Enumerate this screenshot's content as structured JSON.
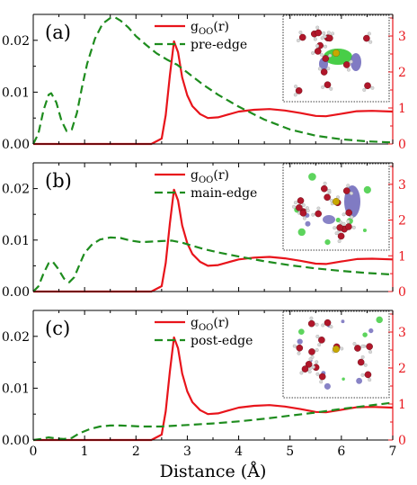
{
  "colors": {
    "g_oo": "#e8141b",
    "edge": "#1e8c1e",
    "frame": "#000000",
    "right_axis": "#e8141b",
    "inset_border": "#000000",
    "oxygen": "#b0162a",
    "hydrogen": "#d8d8d8",
    "density_purple": "#6a64b8",
    "density_green": "#34c934",
    "center": "#c8a800"
  },
  "x_axis": {
    "label": "Distance (Å)",
    "ticks": [
      "0",
      "1",
      "2",
      "3",
      "4",
      "5",
      "6",
      "7"
    ]
  },
  "chart_data": [
    {
      "type": "line",
      "panel_label": "(a)",
      "x_range": [
        0,
        7
      ],
      "y_left_range": [
        0,
        0.025
      ],
      "y_left_ticks": [
        "0.00",
        "0.01",
        "0.02"
      ],
      "y_right_range": [
        0,
        3.6
      ],
      "y_right_ticks": [
        "0",
        "1",
        "2",
        "3"
      ],
      "legend": {
        "position": "top-center",
        "entries": [
          {
            "label_main": "g",
            "label_sub": "OO",
            "label_tail": "(r)"
          },
          {
            "label": "pre-edge"
          }
        ]
      },
      "series": [
        {
          "name": "gOO(r)",
          "axis": "right",
          "style": "solid",
          "x": [
            0,
            2.3,
            2.5,
            2.58,
            2.66,
            2.74,
            2.82,
            2.9,
            3.0,
            3.1,
            3.25,
            3.4,
            3.6,
            3.8,
            4.0,
            4.3,
            4.6,
            4.9,
            5.2,
            5.5,
            5.7,
            6.0,
            6.3,
            6.6,
            7.0
          ],
          "y": [
            0,
            0,
            0.15,
            0.8,
            1.9,
            2.85,
            2.55,
            1.85,
            1.35,
            1.05,
            0.83,
            0.72,
            0.74,
            0.82,
            0.9,
            0.95,
            0.97,
            0.93,
            0.86,
            0.78,
            0.77,
            0.84,
            0.91,
            0.92,
            0.9
          ]
        },
        {
          "name": "pre-edge",
          "axis": "left",
          "style": "dashed",
          "x": [
            0,
            0.1,
            0.2,
            0.3,
            0.35,
            0.45,
            0.55,
            0.65,
            0.75,
            0.85,
            0.95,
            1.05,
            1.2,
            1.35,
            1.5,
            1.6,
            1.7,
            1.85,
            2.0,
            2.2,
            2.4,
            2.6,
            2.8,
            3.0,
            3.3,
            3.6,
            4.0,
            4.5,
            5.0,
            5.5,
            6.0,
            6.5,
            7.0
          ],
          "y": [
            0,
            0.002,
            0.0065,
            0.0095,
            0.0098,
            0.008,
            0.0045,
            0.0025,
            0.0028,
            0.006,
            0.011,
            0.0155,
            0.0203,
            0.0232,
            0.0243,
            0.0244,
            0.0238,
            0.0225,
            0.0208,
            0.0191,
            0.0175,
            0.0163,
            0.0153,
            0.0138,
            0.0115,
            0.0095,
            0.0072,
            0.0047,
            0.0028,
            0.0016,
            0.0009,
            0.0005,
            0.0003
          ]
        }
      ]
    },
    {
      "type": "line",
      "panel_label": "(b)",
      "x_range": [
        0,
        7
      ],
      "y_left_range": [
        0,
        0.025
      ],
      "y_left_ticks": [
        "0.00",
        "0.01",
        "0.02"
      ],
      "y_right_range": [
        0,
        3.6
      ],
      "y_right_ticks": [
        "0",
        "1",
        "2",
        "3"
      ],
      "legend": {
        "position": "top-center",
        "entries": [
          {
            "label_main": "g",
            "label_sub": "OO",
            "label_tail": "(r)"
          },
          {
            "label": "main-edge"
          }
        ]
      },
      "series": [
        {
          "name": "gOO(r)",
          "axis": "right",
          "style": "solid",
          "x": [
            0,
            2.3,
            2.5,
            2.58,
            2.66,
            2.74,
            2.82,
            2.9,
            3.0,
            3.1,
            3.25,
            3.4,
            3.6,
            3.8,
            4.0,
            4.3,
            4.6,
            4.9,
            5.2,
            5.5,
            5.7,
            6.0,
            6.3,
            6.6,
            7.0
          ],
          "y": [
            0,
            0,
            0.15,
            0.8,
            1.9,
            2.85,
            2.55,
            1.85,
            1.35,
            1.05,
            0.83,
            0.72,
            0.74,
            0.82,
            0.9,
            0.95,
            0.97,
            0.93,
            0.86,
            0.78,
            0.77,
            0.84,
            0.91,
            0.92,
            0.9
          ]
        },
        {
          "name": "main-edge",
          "axis": "left",
          "style": "dashed",
          "x": [
            0,
            0.1,
            0.2,
            0.3,
            0.38,
            0.48,
            0.6,
            0.7,
            0.8,
            0.9,
            1.0,
            1.15,
            1.3,
            1.5,
            1.7,
            1.9,
            2.1,
            2.3,
            2.5,
            2.7,
            2.9,
            3.1,
            3.3,
            3.6,
            4.0,
            4.5,
            5.0,
            5.5,
            6.0,
            6.5,
            7.0
          ],
          "y": [
            0,
            0.001,
            0.0035,
            0.0055,
            0.0058,
            0.0045,
            0.0025,
            0.0018,
            0.0028,
            0.0052,
            0.0075,
            0.0092,
            0.0101,
            0.0105,
            0.0104,
            0.0099,
            0.0096,
            0.0097,
            0.0098,
            0.0099,
            0.0095,
            0.0089,
            0.0083,
            0.0076,
            0.0068,
            0.0059,
            0.0051,
            0.0045,
            0.004,
            0.0036,
            0.0033
          ]
        }
      ]
    },
    {
      "type": "line",
      "panel_label": "(c)",
      "x_range": [
        0,
        7
      ],
      "y_left_range": [
        0,
        0.025
      ],
      "y_left_ticks": [
        "0.00",
        "0.01",
        "0.02"
      ],
      "y_right_range": [
        0,
        3.6
      ],
      "y_right_ticks": [
        "0",
        "1",
        "2",
        "3"
      ],
      "legend": {
        "position": "top-center",
        "entries": [
          {
            "label_main": "g",
            "label_sub": "OO",
            "label_tail": "(r)"
          },
          {
            "label": "post-edge"
          }
        ]
      },
      "series": [
        {
          "name": "gOO(r)",
          "axis": "right",
          "style": "solid",
          "x": [
            0,
            2.3,
            2.5,
            2.58,
            2.66,
            2.74,
            2.82,
            2.9,
            3.0,
            3.1,
            3.25,
            3.4,
            3.6,
            3.8,
            4.0,
            4.3,
            4.6,
            4.9,
            5.2,
            5.5,
            5.7,
            6.0,
            6.3,
            6.6,
            7.0
          ],
          "y": [
            0,
            0,
            0.15,
            0.8,
            1.9,
            2.85,
            2.55,
            1.85,
            1.35,
            1.05,
            0.83,
            0.72,
            0.74,
            0.82,
            0.9,
            0.95,
            0.97,
            0.93,
            0.86,
            0.78,
            0.77,
            0.84,
            0.91,
            0.92,
            0.9
          ]
        },
        {
          "name": "post-edge",
          "axis": "left",
          "style": "dashed",
          "x": [
            0,
            0.15,
            0.3,
            0.45,
            0.6,
            0.75,
            0.9,
            1.1,
            1.3,
            1.5,
            1.7,
            1.9,
            2.1,
            2.3,
            2.5,
            3.0,
            3.5,
            4.0,
            4.5,
            5.0,
            5.5,
            6.0,
            6.5,
            7.0
          ],
          "y": [
            0,
            0.0002,
            0.0005,
            0.0003,
            0.0002,
            0.0004,
            0.0013,
            0.0021,
            0.0026,
            0.0028,
            0.0028,
            0.0027,
            0.0026,
            0.0026,
            0.0026,
            0.0029,
            0.0032,
            0.0036,
            0.0041,
            0.0047,
            0.0053,
            0.006,
            0.0066,
            0.0072
          ]
        }
      ]
    }
  ]
}
